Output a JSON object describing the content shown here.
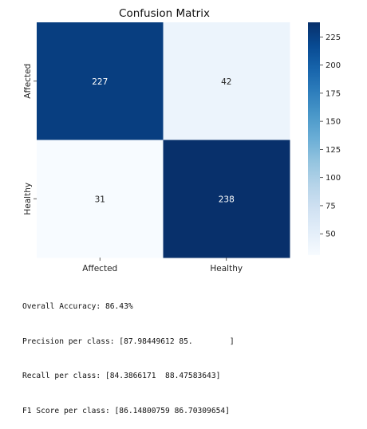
{
  "chart_data": {
    "type": "heatmap",
    "title": "Confusion Matrix",
    "xlabel": "",
    "ylabel": "",
    "row_labels": [
      "Affected",
      "Healthy"
    ],
    "col_labels": [
      "Affected",
      "Healthy"
    ],
    "values": [
      [
        227,
        42
      ],
      [
        31,
        238
      ]
    ],
    "colormap": "Blues",
    "color_low": "#f7fbff",
    "color_high": "#08306b",
    "colorbar": {
      "vmin": 31,
      "vmax": 238,
      "ticks": [
        50,
        75,
        100,
        125,
        150,
        175,
        200,
        225
      ]
    },
    "grid": false
  },
  "metrics": {
    "accuracy": "Overall Accuracy: 86.43%",
    "precision": "Precision per class: [87.98449612 85.        ]",
    "recall": "Recall per class: [84.3866171  88.47583643]",
    "f1": "F1 Score per class: [86.14800759 86.70309654]"
  }
}
